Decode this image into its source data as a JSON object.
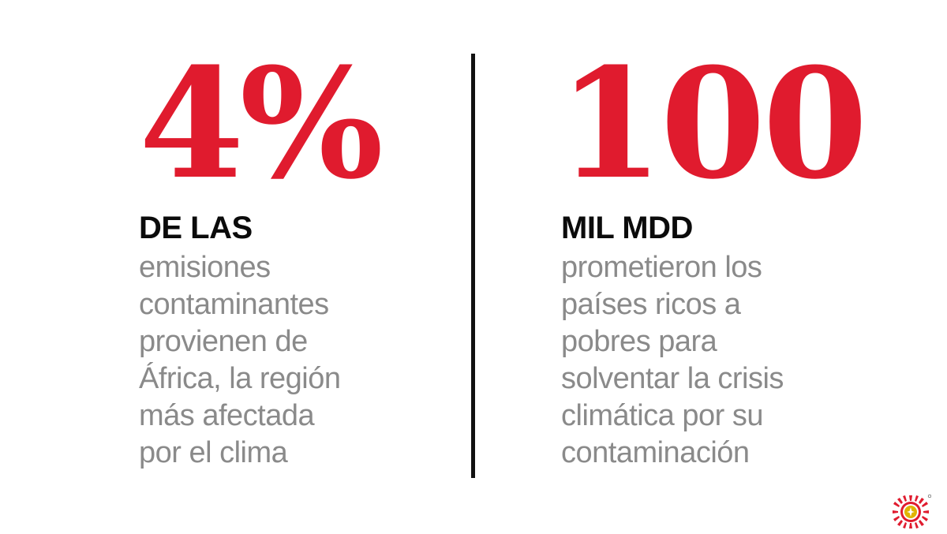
{
  "colors": {
    "accent": "#e01b2e",
    "headline": "#0b0b0b",
    "body_text": "#8a8a8a",
    "divider": "#111111",
    "logo": "#e01b2e",
    "logo_center": "#e0b400"
  },
  "left_stat": {
    "number": "4%",
    "headline": "DE LAS",
    "description_lines": [
      "emisiones",
      "contaminantes",
      "provienen de",
      "África, la región",
      "más afectada",
      "por el clima"
    ]
  },
  "right_stat": {
    "number": "100",
    "headline": "MIL MDD",
    "description_lines": [
      "prometieron los",
      "países ricos a",
      "pobres para",
      "solventar la crisis",
      "climática por su",
      "contaminación"
    ]
  },
  "logo": {
    "icon": "sun-seal-icon"
  }
}
